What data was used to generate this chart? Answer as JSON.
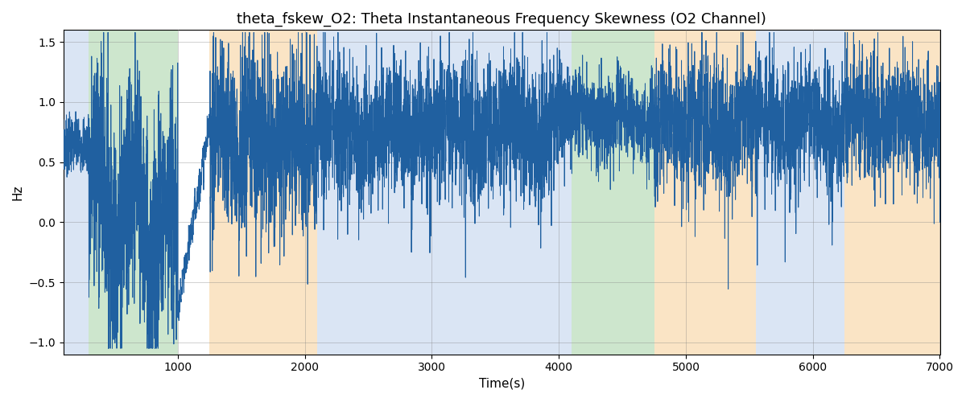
{
  "title": "theta_fskew_O2: Theta Instantaneous Frequency Skewness (O2 Channel)",
  "xlabel": "Time(s)",
  "ylabel": "Hz",
  "xlim": [
    100,
    7000
  ],
  "ylim": [
    -1.1,
    1.6
  ],
  "yticks": [
    -1.0,
    -0.5,
    0.0,
    0.5,
    1.0,
    1.5
  ],
  "xticks": [
    1000,
    2000,
    3000,
    4000,
    5000,
    6000,
    7000
  ],
  "line_color": "#2060a0",
  "bg_color": "#ffffff",
  "bands": [
    {
      "xmin": 100,
      "xmax": 300,
      "color": "#aec6e8",
      "alpha": 0.45
    },
    {
      "xmin": 300,
      "xmax": 1000,
      "color": "#90c990",
      "alpha": 0.45
    },
    {
      "xmin": 1250,
      "xmax": 2100,
      "color": "#f5c580",
      "alpha": 0.45
    },
    {
      "xmin": 2100,
      "xmax": 3950,
      "color": "#aec6e8",
      "alpha": 0.45
    },
    {
      "xmin": 3950,
      "xmax": 4100,
      "color": "#aec6e8",
      "alpha": 0.45
    },
    {
      "xmin": 4100,
      "xmax": 4750,
      "color": "#90c990",
      "alpha": 0.45
    },
    {
      "xmin": 4750,
      "xmax": 5550,
      "color": "#f5c580",
      "alpha": 0.45
    },
    {
      "xmin": 5550,
      "xmax": 6250,
      "color": "#aec6e8",
      "alpha": 0.45
    },
    {
      "xmin": 6250,
      "xmax": 7000,
      "color": "#f5c580",
      "alpha": 0.45
    }
  ],
  "title_fontsize": 13
}
